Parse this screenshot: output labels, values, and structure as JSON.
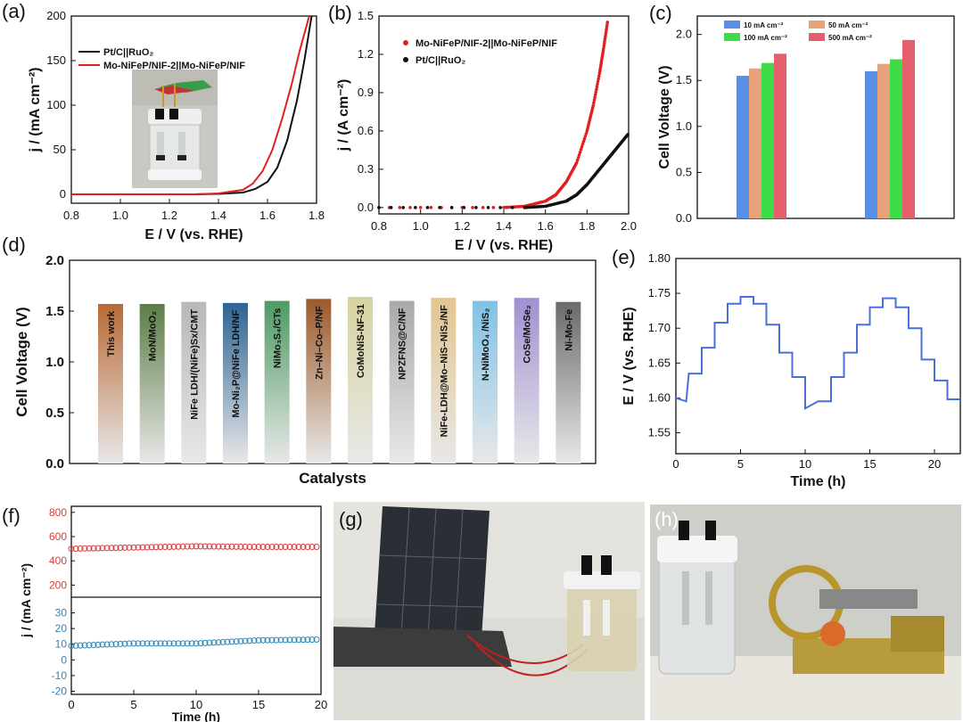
{
  "panels": {
    "a": {
      "label": "(a)"
    },
    "b": {
      "label": "(b)"
    },
    "c": {
      "label": "(c)"
    },
    "d": {
      "label": "(d)"
    },
    "e": {
      "label": "(e)"
    },
    "f": {
      "label": "(f)"
    },
    "g": {
      "label": "(g)"
    },
    "h": {
      "label": "(h)"
    }
  },
  "colors": {
    "black": "#111111",
    "red": "#e02020",
    "blue": "#4a6fdc",
    "f_red": "#d83a3a",
    "f_blue": "#2a86b8"
  },
  "chart_data": [
    {
      "id": "a",
      "type": "line",
      "xlabel": "E / V (vs. RHE)",
      "ylabel": "j / (mA cm⁻²)",
      "xlim": [
        0.8,
        1.8
      ],
      "ylim": [
        -10,
        200
      ],
      "xticks": [
        0.8,
        1.0,
        1.2,
        1.4,
        1.6,
        1.8
      ],
      "yticks": [
        0,
        50,
        100,
        150,
        200
      ],
      "legend": "top-left",
      "series": [
        {
          "name": "Pt/C||RuO₂",
          "color": "#111111",
          "x": [
            0.8,
            1.3,
            1.4,
            1.5,
            1.55,
            1.6,
            1.64,
            1.68,
            1.72,
            1.75,
            1.78
          ],
          "y": [
            0,
            0,
            0.5,
            2,
            6,
            14,
            30,
            60,
            105,
            150,
            200
          ]
        },
        {
          "name": "Mo-NiFeP/NIF-2||Mo-NiFeP/NIF",
          "color": "#e02020",
          "x": [
            0.8,
            1.3,
            1.4,
            1.5,
            1.54,
            1.58,
            1.62,
            1.66,
            1.7,
            1.73,
            1.77
          ],
          "y": [
            0,
            0,
            1,
            5,
            12,
            26,
            50,
            85,
            125,
            160,
            200
          ]
        }
      ],
      "inset": "photo of electrolysis cell"
    },
    {
      "id": "b",
      "type": "scatter",
      "xlabel": "E / V (vs. RHE)",
      "ylabel": "j / (A cm⁻²)",
      "xlim": [
        0.8,
        2.0
      ],
      "ylim": [
        -0.05,
        1.5
      ],
      "xticks": [
        0.8,
        1.0,
        1.2,
        1.4,
        1.6,
        1.8,
        2.0
      ],
      "yticks": [
        0.0,
        0.3,
        0.6,
        0.9,
        1.2,
        1.5
      ],
      "legend": "top-left",
      "series": [
        {
          "name": "Mo-NiFeP/NIF-2||Mo-NiFeP/NIF",
          "color": "#e02020",
          "x": [
            0.8,
            1.4,
            1.5,
            1.6,
            1.65,
            1.7,
            1.75,
            1.8,
            1.83,
            1.86,
            1.88,
            1.9
          ],
          "y": [
            0,
            0,
            0.01,
            0.05,
            0.1,
            0.2,
            0.35,
            0.6,
            0.8,
            1.05,
            1.25,
            1.47
          ]
        },
        {
          "name": "Pt/C||RuO₂",
          "color": "#111111",
          "x": [
            0.8,
            1.5,
            1.6,
            1.7,
            1.75,
            1.8,
            1.85,
            1.9,
            1.95,
            2.0
          ],
          "y": [
            0,
            0,
            0.01,
            0.05,
            0.1,
            0.18,
            0.28,
            0.38,
            0.48,
            0.58
          ]
        }
      ]
    },
    {
      "id": "c",
      "type": "bar",
      "ylabel": "Cell Voltage (V)",
      "ylim": [
        0.0,
        2.2
      ],
      "yticks": [
        0.0,
        0.5,
        1.0,
        1.5,
        2.0
      ],
      "legend": "top",
      "groups": 2,
      "series": [
        {
          "name": "10 mA cm⁻²",
          "color": "#5b8fe6",
          "values": [
            1.55,
            1.6
          ]
        },
        {
          "name": "50 mA cm⁻²",
          "color": "#e8a27a",
          "values": [
            1.63,
            1.68
          ]
        },
        {
          "name": "100 mA cm⁻²",
          "color": "#3fdc4a",
          "values": [
            1.69,
            1.73
          ]
        },
        {
          "name": "500 mA cm⁻²",
          "color": "#e5606a",
          "values": [
            1.79,
            1.94
          ]
        }
      ]
    },
    {
      "id": "d",
      "type": "bar",
      "xlabel": "Catalysts",
      "ylabel": "Cell Voltage (V)",
      "ylim": [
        0.0,
        2.0
      ],
      "yticks": [
        0.0,
        0.5,
        1.0,
        1.5,
        2.0
      ],
      "categories": [
        "This work",
        "MoN/MoO₂",
        "NiFe LDH/(NiFe)Sx/CMT",
        "Mo-Ni₂P@NiFe LDH/NF",
        "NiMo₃S₄/CTs",
        "Zn–Ni–Co–P/NF",
        "CoMoNiS-NF-31",
        "NPZFNS@C/NF",
        "NiFe-LDH@Mo–NiS–NiS₂/NF",
        "N-NiMoO₄ /NiS₂",
        "CoSe/MoSe₂",
        "Ni-Mo-Fe"
      ],
      "values": [
        1.57,
        1.57,
        1.59,
        1.58,
        1.6,
        1.62,
        1.64,
        1.6,
        1.63,
        1.6,
        1.63,
        1.59
      ],
      "colors": [
        "#b86a35",
        "#5d7d45",
        "#b8b8b8",
        "#2e6494",
        "#4e9a63",
        "#9c5a2a",
        "#d7d3a0",
        "#a9a9a9",
        "#e2c690",
        "#7fc2e6",
        "#a28fd1",
        "#6a6a6a"
      ]
    },
    {
      "id": "e",
      "type": "line",
      "xlabel": "Time (h)",
      "ylabel": "E / V (vs. RHE)",
      "xlim": [
        0,
        22
      ],
      "ylim": [
        1.52,
        1.8
      ],
      "xticks": [
        0,
        5,
        10,
        15,
        20
      ],
      "yticks": [
        1.55,
        1.6,
        1.65,
        1.7,
        1.75,
        1.8
      ],
      "series": [
        {
          "name": "",
          "color": "#4a6fdc",
          "x": [
            0,
            0.8,
            1,
            2,
            2,
            3,
            3,
            4,
            4,
            5,
            5,
            6,
            6,
            7,
            7,
            8,
            8,
            9,
            9,
            10,
            10,
            11,
            12,
            12,
            13,
            13,
            14,
            14,
            15,
            15,
            16,
            16,
            17,
            17,
            18,
            18,
            19,
            19,
            20,
            20,
            21,
            21,
            22
          ],
          "y": [
            1.6,
            1.595,
            1.635,
            1.635,
            1.672,
            1.672,
            1.708,
            1.708,
            1.735,
            1.735,
            1.745,
            1.745,
            1.735,
            1.735,
            1.705,
            1.705,
            1.665,
            1.665,
            1.63,
            1.63,
            1.585,
            1.595,
            1.595,
            1.63,
            1.63,
            1.665,
            1.665,
            1.705,
            1.705,
            1.73,
            1.73,
            1.743,
            1.743,
            1.73,
            1.73,
            1.7,
            1.7,
            1.655,
            1.655,
            1.625,
            1.625,
            1.598,
            1.598
          ]
        }
      ]
    },
    {
      "id": "f",
      "type": "scatter",
      "xlabel": "Time (h)",
      "ylabel": "j / (mA cm⁻²)",
      "xlim": [
        0,
        20
      ],
      "xticks": [
        0,
        5,
        10,
        15,
        20
      ],
      "top_yticks": [
        200,
        400,
        600,
        800
      ],
      "bottom_yticks": [
        -20,
        -10,
        0,
        10,
        20,
        30
      ],
      "series": [
        {
          "name": "",
          "color": "#d83a3a",
          "x": [
            0,
            5,
            10,
            15,
            20
          ],
          "y": [
            500,
            510,
            520,
            515,
            515
          ]
        },
        {
          "name": "",
          "color": "#2a86b8",
          "x": [
            0,
            5,
            10,
            15,
            20
          ],
          "y": [
            9,
            10.5,
            10.5,
            12.5,
            13
          ]
        }
      ]
    }
  ]
}
